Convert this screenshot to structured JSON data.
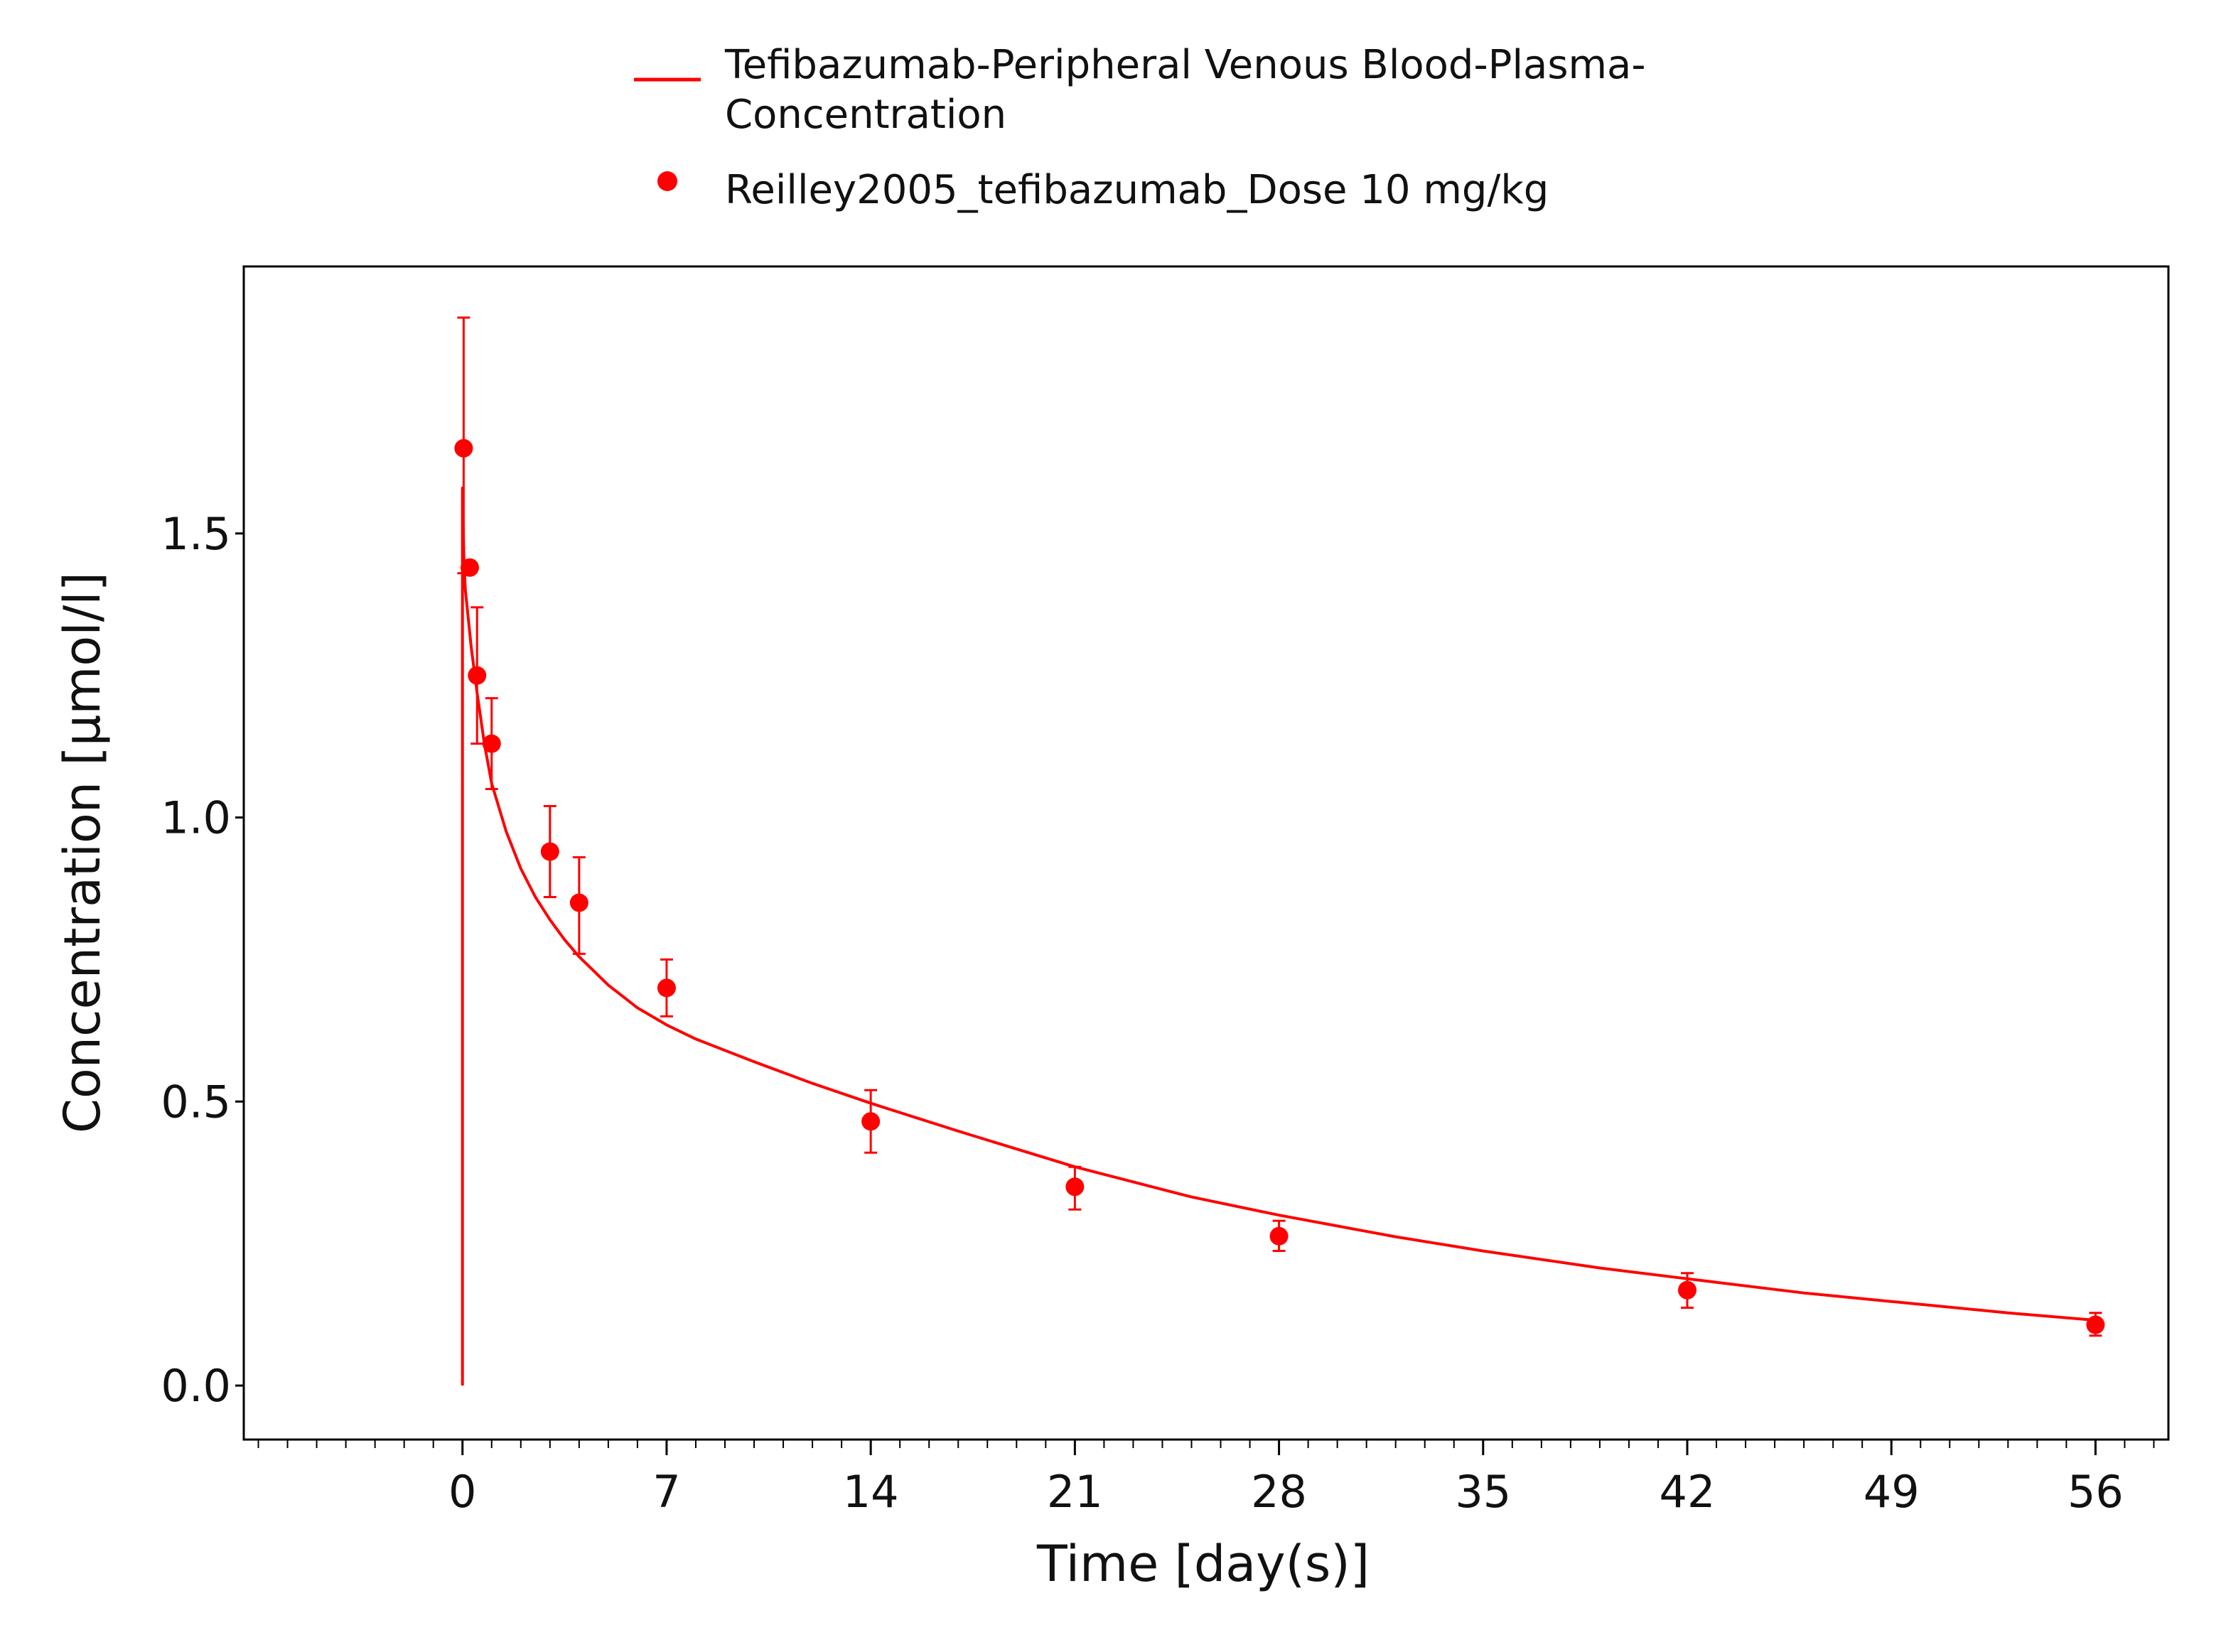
{
  "chart_data": {
    "type": "line",
    "xlabel": "Time [day(s)]",
    "ylabel": "Concentration [µmol/l]",
    "xlim": [
      -7.5,
      58.5
    ],
    "ylim": [
      -0.095,
      1.97
    ],
    "xticks": [
      0,
      7,
      14,
      21,
      28,
      35,
      42,
      49,
      56
    ],
    "xtick_labels": [
      "0",
      "7",
      "14",
      "21",
      "28",
      "35",
      "42",
      "49",
      "56"
    ],
    "xminor_step": 1,
    "yticks": [
      0.0,
      0.5,
      1.0,
      1.5
    ],
    "ytick_labels": [
      "0.0",
      "0.5",
      "1.0",
      "1.5"
    ],
    "grid": false,
    "legend_position": "top-center",
    "color": "#ff0000",
    "series": [
      {
        "name_lines": [
          "Tefibazumab-Peripheral Venous Blood-Plasma-",
          "Concentration"
        ],
        "kind": "line",
        "x": [
          0,
          0,
          0.05,
          0.1,
          0.2,
          0.3,
          0.5,
          0.75,
          1,
          1.5,
          2,
          2.5,
          3,
          3.5,
          4,
          5,
          6,
          7,
          8,
          10,
          12,
          14,
          17,
          21,
          25,
          28,
          32,
          35,
          39,
          42,
          46,
          49,
          53,
          56
        ],
        "y": [
          0,
          1.58,
          1.45,
          1.4,
          1.35,
          1.3,
          1.22,
          1.13,
          1.06,
          0.975,
          0.91,
          0.86,
          0.82,
          0.785,
          0.755,
          0.705,
          0.665,
          0.635,
          0.61,
          0.57,
          0.532,
          0.497,
          0.448,
          0.385,
          0.332,
          0.3,
          0.262,
          0.237,
          0.207,
          0.188,
          0.163,
          0.148,
          0.128,
          0.115
        ]
      },
      {
        "name": "Reilley2005_tefibazumab_Dose 10 mg/kg",
        "kind": "scatter",
        "points": [
          {
            "x": 0.04,
            "y": 1.65,
            "lo": 1.43,
            "hi": 1.88
          },
          {
            "x": 0.25,
            "y": 1.44,
            "lo": 1.44,
            "hi": 1.44
          },
          {
            "x": 0.5,
            "y": 1.25,
            "lo": 1.13,
            "hi": 1.37
          },
          {
            "x": 1,
            "y": 1.13,
            "lo": 1.05,
            "hi": 1.21
          },
          {
            "x": 3,
            "y": 0.94,
            "lo": 0.86,
            "hi": 1.02
          },
          {
            "x": 4,
            "y": 0.85,
            "lo": 0.76,
            "hi": 0.93
          },
          {
            "x": 7,
            "y": 0.7,
            "lo": 0.65,
            "hi": 0.75
          },
          {
            "x": 14,
            "y": 0.465,
            "lo": 0.41,
            "hi": 0.52
          },
          {
            "x": 21,
            "y": 0.35,
            "lo": 0.31,
            "hi": 0.385
          },
          {
            "x": 28,
            "y": 0.263,
            "lo": 0.237,
            "hi": 0.29
          },
          {
            "x": 42,
            "y": 0.168,
            "lo": 0.137,
            "hi": 0.198
          },
          {
            "x": 56,
            "y": 0.107,
            "lo": 0.088,
            "hi": 0.128
          }
        ]
      }
    ]
  }
}
